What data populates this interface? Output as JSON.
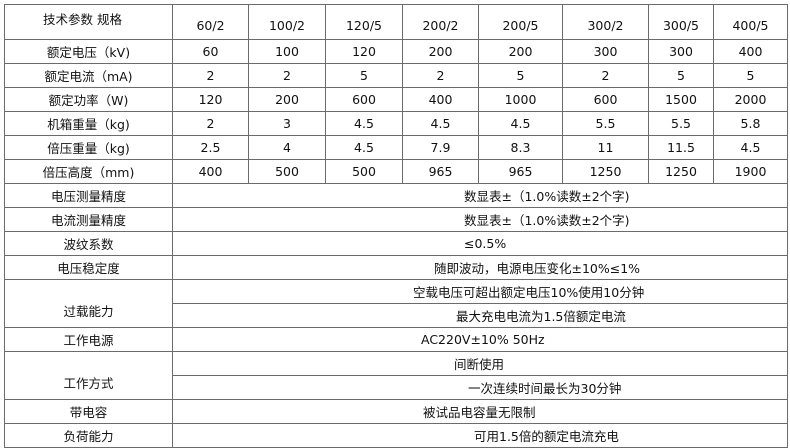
{
  "header": {
    "label": "技术参数  规格",
    "models": [
      "60/2",
      "100/2",
      "120/5",
      "200/2",
      "200/5",
      "300/2",
      "300/5",
      "400/5"
    ]
  },
  "rows": [
    {
      "label": "额定电压（kV)",
      "values": [
        "60",
        "100",
        "120",
        "200",
        "200",
        "300",
        "300",
        "400"
      ]
    },
    {
      "label": "额定电流（mA)",
      "values": [
        "2",
        "2",
        "5",
        "2",
        "5",
        "2",
        "5",
        "5"
      ]
    },
    {
      "label": "额定功率（W)",
      "values": [
        "120",
        "200",
        "600",
        "400",
        "1000",
        "600",
        "1500",
        "2000"
      ]
    },
    {
      "label": "机箱重量（kg)",
      "values": [
        "2",
        "3",
        "4.5",
        "4.5",
        "4.5",
        "5.5",
        "5.5",
        "5.8"
      ]
    },
    {
      "label": "倍压重量（kg)",
      "values": [
        "2.5",
        "4",
        "4.5",
        "7.9",
        "8.3",
        "11",
        "11.5",
        "4.5"
      ]
    },
    {
      "label": "倍压高度（mm)",
      "values": [
        "400",
        "500",
        "500",
        "965",
        "965",
        "1250",
        "1250",
        "1900"
      ]
    }
  ],
  "specs": {
    "voltage_accuracy": {
      "label": "电压测量精度",
      "value": "数显表±（1.0%读数±2个字)"
    },
    "current_accuracy": {
      "label": "电流测量精度",
      "value": "数显表±（1.0%读数±2个字)"
    },
    "ripple": {
      "label": "波纹系数",
      "value": "≤0.5%"
    },
    "stability": {
      "label": "电压稳定度",
      "value": "随即波动，电源电压变化±10%≤1%"
    },
    "overload": {
      "label": "过载能力",
      "values": [
        "空载电压可超出额定电压10%使用10分钟",
        "最大充电电流为1.5倍额定电流"
      ]
    },
    "power_supply": {
      "label": "工作电源",
      "value": "AC220V±10% 50Hz"
    },
    "work_mode": {
      "label": "工作方式",
      "values": [
        "间断使用",
        "一次连续时间最长为30分钟"
      ]
    },
    "capacitance": {
      "label": "带电容",
      "value": "被试品电容量无限制"
    },
    "load": {
      "label": "负荷能力",
      "value": "可用1.5倍的额定电流充电"
    }
  }
}
